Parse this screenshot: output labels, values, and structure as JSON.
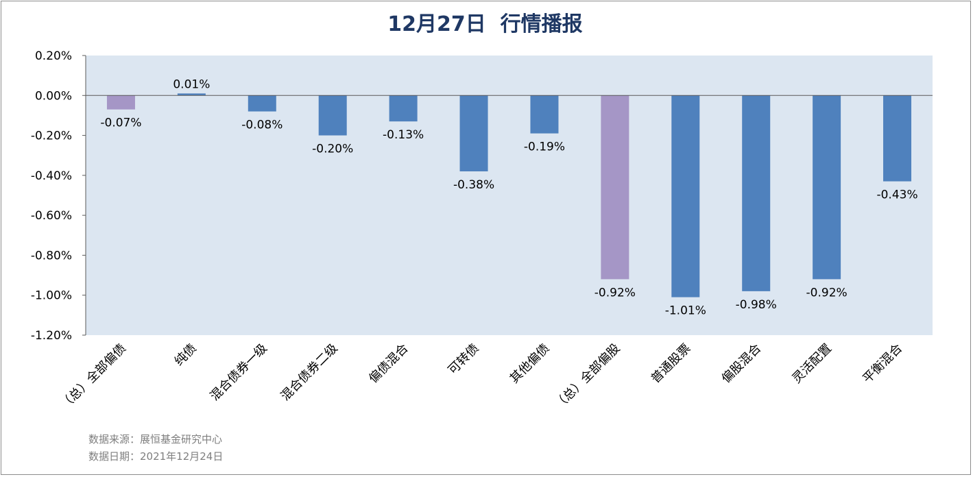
{
  "chart_data": {
    "type": "bar",
    "title": "12月27日  行情播报",
    "categories": [
      "（总）全部偏债",
      "纯债",
      "混合债券一级",
      "混合债券二级",
      "偏债混合",
      "可转债",
      "其他偏债",
      "（总）全部偏股",
      "普通股票",
      "偏股混合",
      "灵活配置",
      "平衡混合"
    ],
    "values": [
      -0.07,
      0.01,
      -0.08,
      -0.2,
      -0.13,
      -0.38,
      -0.19,
      -0.92,
      -1.01,
      -0.98,
      -0.92,
      -0.43
    ],
    "data_labels": [
      "-0.07%",
      "0.01%",
      "-0.08%",
      "-0.20%",
      "-0.13%",
      "-0.38%",
      "-0.19%",
      "-0.92%",
      "-1.01%",
      "-0.98%",
      "-0.92%",
      "-0.43%"
    ],
    "highlight_indices": [
      0,
      7
    ],
    "ylim": [
      -1.2,
      0.2
    ],
    "yticks": [
      0.2,
      0.0,
      -0.2,
      -0.4,
      -0.6,
      -0.8,
      -1.0,
      -1.2
    ],
    "ytick_labels": [
      "0.20%",
      "0.00%",
      "-0.20%",
      "-0.40%",
      "-0.60%",
      "-0.80%",
      "-1.00%",
      "-1.20%"
    ],
    "xlabel": "",
    "ylabel": "",
    "grid": false,
    "legend": "none",
    "colors": {
      "bar": "#4f81bd",
      "highlight": "#a596c6",
      "plot_bg": "#dce6f1",
      "title": "#1f3864",
      "axis": "#595959",
      "text": "#000000"
    }
  },
  "footer": {
    "source": "数据来源：展恒基金研究中心",
    "date": "数据日期：2021年12月24日"
  }
}
